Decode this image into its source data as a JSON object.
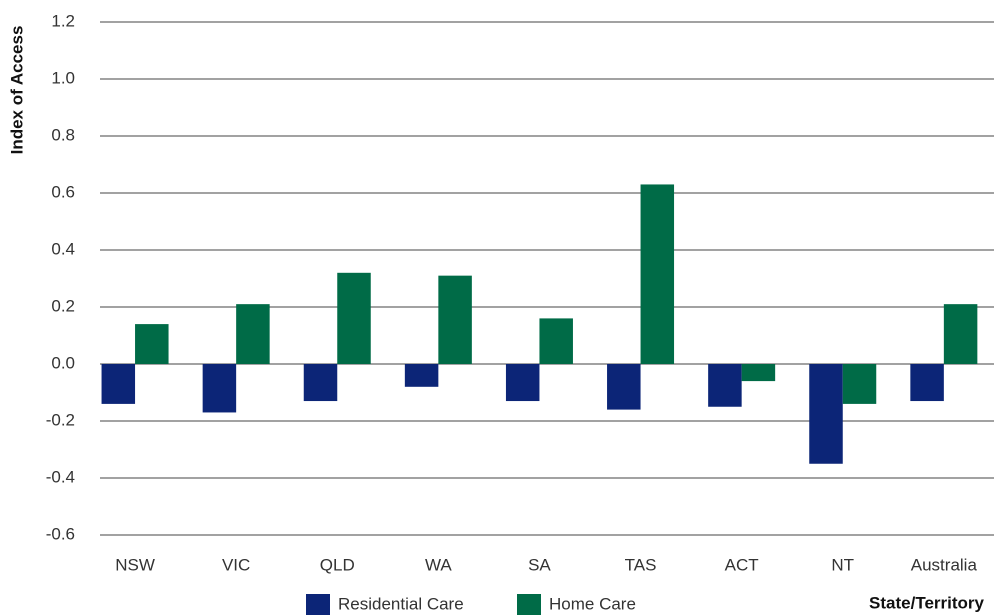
{
  "chart_data": {
    "type": "bar",
    "y_label": "Index of Access",
    "x_label": "State/Territory",
    "categories": [
      "NSW",
      "VIC",
      "QLD",
      "WA",
      "SA",
      "TAS",
      "ACT",
      "NT",
      "Australia"
    ],
    "series": [
      {
        "name": "Residential Care",
        "color": "#0c2577",
        "values": [
          -0.14,
          -0.17,
          -0.13,
          -0.08,
          -0.13,
          -0.16,
          -0.15,
          -0.35,
          -0.13
        ]
      },
      {
        "name": "Home Care",
        "color": "#006b47",
        "values": [
          0.14,
          0.21,
          0.32,
          0.31,
          0.16,
          0.63,
          -0.06,
          -0.14,
          0.21
        ]
      }
    ],
    "ylim": [
      -0.6,
      1.2
    ],
    "yticks": [
      1.2,
      {
        "value": 1,
        "label": "1.0"
      },
      0.8,
      0.6,
      0.4,
      0.2,
      {
        "value": 0,
        "label": "0.0"
      },
      -0.2,
      -0.4,
      -0.6
    ],
    "grid": true
  }
}
